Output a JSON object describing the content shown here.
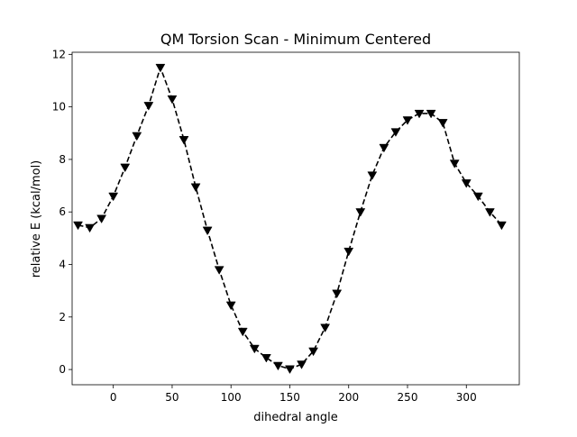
{
  "chart_data": {
    "type": "line",
    "title": "QM Torsion Scan - Minimum Centered",
    "xlabel": "dihedral angle",
    "ylabel": "relative E (kcal/mol)",
    "xlim": [
      -35,
      345
    ],
    "ylim": [
      -0.58,
      12.08
    ],
    "xticks": [
      0,
      50,
      100,
      150,
      200,
      250,
      300
    ],
    "yticks": [
      0,
      2,
      4,
      6,
      8,
      10,
      12
    ],
    "grid": false,
    "series": [
      {
        "line_style": "dashed",
        "marker": "triangle-down",
        "color": "#000000",
        "x": [
          -30,
          -20,
          -10,
          0,
          10,
          20,
          30,
          40,
          50,
          60,
          70,
          80,
          90,
          100,
          110,
          120,
          130,
          140,
          150,
          160,
          170,
          180,
          190,
          200,
          210,
          220,
          230,
          240,
          250,
          260,
          270,
          280,
          290,
          300,
          310,
          320,
          330
        ],
        "y": [
          5.5,
          5.4,
          5.75,
          6.6,
          7.7,
          8.9,
          10.05,
          11.5,
          10.3,
          8.75,
          6.95,
          5.3,
          3.8,
          2.45,
          1.45,
          0.8,
          0.45,
          0.15,
          0.02,
          0.2,
          0.7,
          1.6,
          2.9,
          4.5,
          6.0,
          7.4,
          8.45,
          9.05,
          9.5,
          9.75,
          9.75,
          9.4,
          7.85,
          7.1,
          6.6,
          6.0,
          5.5
        ]
      }
    ]
  }
}
